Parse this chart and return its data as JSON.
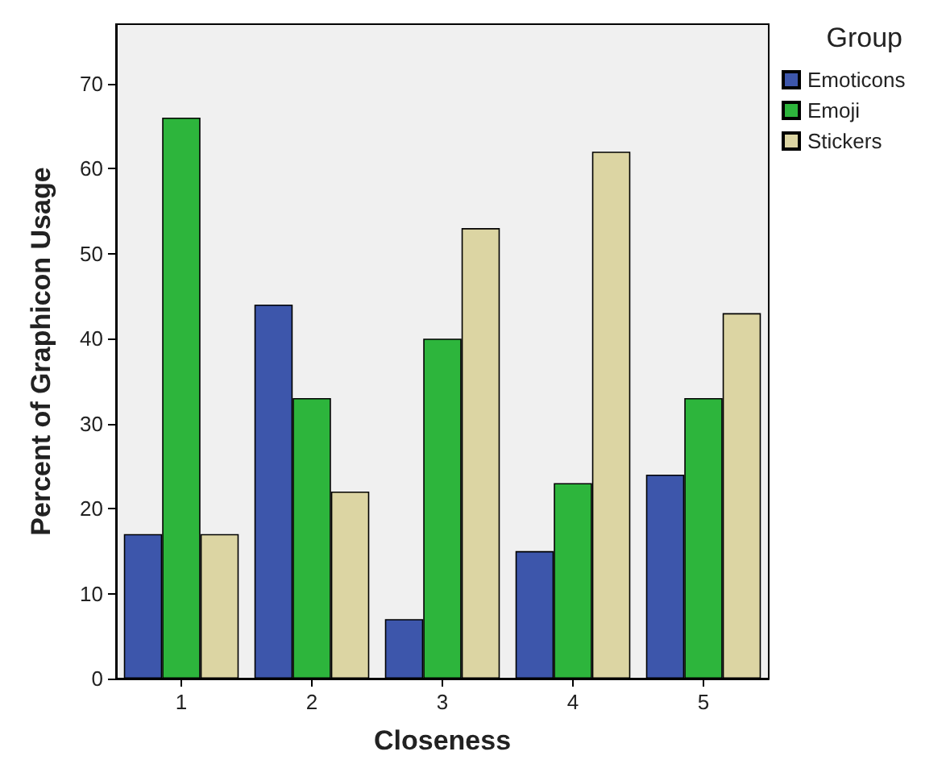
{
  "chart_data": {
    "type": "bar",
    "xlabel": "Closeness",
    "ylabel": "Percent of Graphicon Usage",
    "legend_title": "Group",
    "categories": [
      "1",
      "2",
      "3",
      "4",
      "5"
    ],
    "series": [
      {
        "name": "Emoticons",
        "color": "#3d56ab",
        "values": [
          17,
          44,
          7,
          15,
          24
        ]
      },
      {
        "name": "Emoji",
        "color": "#2db53c",
        "values": [
          66,
          33,
          40,
          23,
          33
        ]
      },
      {
        "name": "Stickers",
        "color": "#dcd5a3",
        "values": [
          17,
          22,
          53,
          62,
          43
        ]
      }
    ],
    "ylim": [
      0,
      77
    ],
    "yticks": [
      0,
      10,
      20,
      30,
      40,
      50,
      60,
      70
    ],
    "grid": false,
    "legend": "top right"
  }
}
